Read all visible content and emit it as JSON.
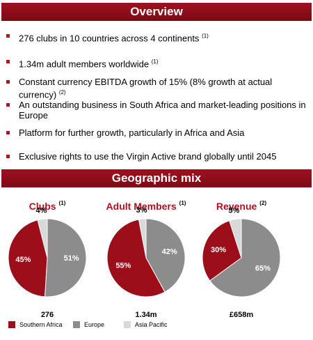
{
  "overview": {
    "title": "Overview",
    "bullets": [
      {
        "text": "276 clubs in 10 countries across 4 continents",
        "note": "(1)"
      },
      {
        "text": "1.34m adult members worldwide",
        "note": "(1)"
      },
      {
        "text": "Constant currency EBITDA growth of 15% (8% growth at actual currency)",
        "note": "(2)"
      },
      {
        "text": "An outstanding business in South Africa and market-leading positions in Europe"
      },
      {
        "text": "Platform for further growth, particularly in Africa and Asia"
      },
      {
        "text": "Exclusive rights to use the Virgin Active brand globally until 2045"
      }
    ]
  },
  "geographic_mix": {
    "title": "Geographic mix"
  },
  "chart_data": [
    {
      "type": "pie",
      "title": "Clubs",
      "title_note": "(1)",
      "categories": [
        "Southern Africa",
        "Europe",
        "Asia Pacific"
      ],
      "values": [
        45,
        51,
        4
      ],
      "value_labels": [
        "45%",
        "51%",
        "4%"
      ],
      "colors": [
        "#9b0e1a",
        "#8c8c8c",
        "#d9d9d9"
      ],
      "total": "276"
    },
    {
      "type": "pie",
      "title": "Adult Members",
      "title_note": "(1)",
      "categories": [
        "Southern Africa",
        "Europe",
        "Asia Pacific"
      ],
      "values": [
        55,
        42,
        3
      ],
      "value_labels": [
        "55%",
        "42%",
        "3%"
      ],
      "colors": [
        "#9b0e1a",
        "#8c8c8c",
        "#d9d9d9"
      ],
      "total": "1.34m"
    },
    {
      "type": "pie",
      "title": "Revenue",
      "title_note": "(2)",
      "categories": [
        "Southern Africa",
        "Europe",
        "Asia Pacific"
      ],
      "values": [
        30,
        65,
        5
      ],
      "value_labels": [
        "30%",
        "65%",
        "5%"
      ],
      "colors": [
        "#9b0e1a",
        "#8c8c8c",
        "#d9d9d9"
      ],
      "total": "£658m"
    }
  ]
}
